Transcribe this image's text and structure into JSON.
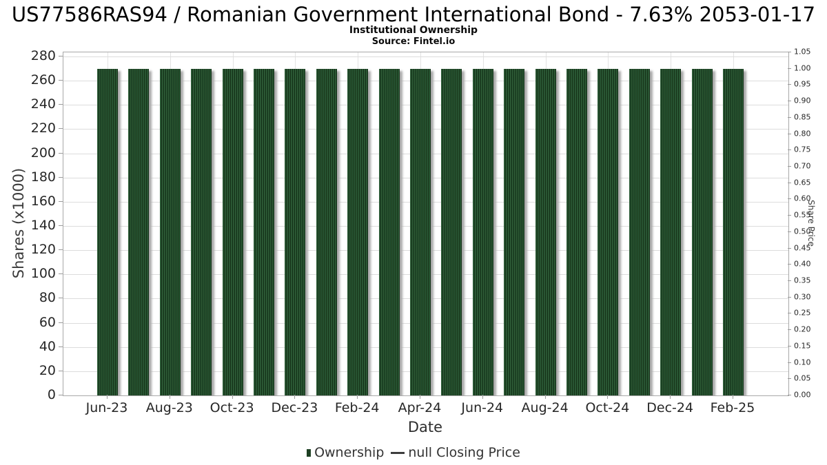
{
  "chart_data": {
    "type": "bar",
    "title": "US77586RAS94 / Romanian Government International Bond - 7.63% 2053-01-17",
    "subtitle": "Institutional Ownership",
    "source": "Source: Fintel.io",
    "xlabel": "Date",
    "ylabel_left": "Shares (x1000)",
    "ylabel_right": "Share Price",
    "categories": [
      "Jun-23",
      "Jul-23",
      "Aug-23",
      "Sep-23",
      "Oct-23",
      "Nov-23",
      "Dec-23",
      "Jan-24",
      "Feb-24",
      "Mar-24",
      "Apr-24",
      "May-24",
      "Jun-24",
      "Jul-24",
      "Aug-24",
      "Sep-24",
      "Oct-24",
      "Nov-24",
      "Dec-24",
      "Jan-25",
      "Feb-25"
    ],
    "series": [
      {
        "name": "Ownership",
        "render": "bar",
        "color": "#1d4023",
        "values": [
          270,
          270,
          270,
          270,
          270,
          270,
          270,
          270,
          270,
          270,
          270,
          270,
          270,
          270,
          270,
          270,
          270,
          270,
          270,
          270,
          270
        ]
      },
      {
        "name": "null Closing Price",
        "render": "line",
        "color": "#3d3d3d",
        "values": []
      }
    ],
    "ylim_left": [
      0,
      280
    ],
    "left_tick_labels": [
      "0",
      "20",
      "40",
      "60",
      "80",
      "100",
      "120",
      "140",
      "160",
      "180",
      "200",
      "220",
      "240",
      "260",
      "280"
    ],
    "ylim_right": [
      0,
      1.05
    ],
    "right_tick_labels": [
      "0.00",
      "0.05",
      "0.10",
      "0.15",
      "0.20",
      "0.25",
      "0.30",
      "0.35",
      "0.40",
      "0.45",
      "0.50",
      "0.55",
      "0.60",
      "0.65",
      "0.70",
      "0.75",
      "0.80",
      "0.85",
      "0.90",
      "0.95",
      "1.00",
      "1.05"
    ],
    "x_major_tick_labels": [
      "Jun-23",
      "Aug-23",
      "Oct-23",
      "Dec-23",
      "Feb-24",
      "Apr-24",
      "Jun-24",
      "Aug-24",
      "Oct-24",
      "Dec-24",
      "Feb-25"
    ],
    "grid": "on",
    "legend_position": "bottom"
  },
  "legend": {
    "items": [
      {
        "label": "Ownership",
        "marker": "square",
        "color": "#1d4023"
      },
      {
        "label": "null Closing Price",
        "marker": "line",
        "color": "#3d3d3d"
      }
    ]
  },
  "colors": {
    "bar_stripe_light": "#2f5d37",
    "bar_stripe_dark": "#143117",
    "bar_shadow": "#a8a8a8",
    "gridline": "#dcdcdc",
    "plot_border": "#a8a8a8",
    "tick_text": "#262626",
    "title_text": "#000000"
  }
}
